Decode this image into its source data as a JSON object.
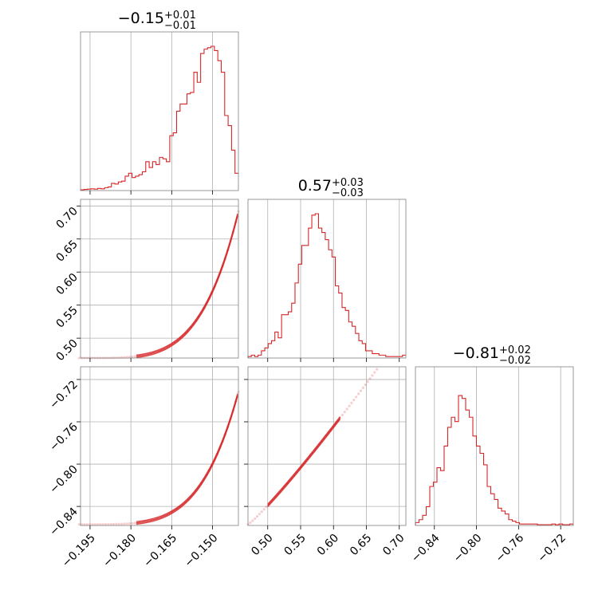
{
  "chart_data": {
    "type": "corner",
    "color": "#d62728",
    "parameters": [
      {
        "title_main": "−0.15",
        "title_plus": "+0.01",
        "title_minus": "−0.01",
        "range": [
          -0.1985,
          -0.1405
        ],
        "ticks": [
          -0.195,
          -0.18,
          -0.165,
          -0.15
        ],
        "tick_labels": [
          "−0.195",
          "−0.180",
          "−0.165",
          "−0.150"
        ],
        "hist": [
          0.005,
          0.008,
          0.01,
          0.012,
          0.01,
          0.015,
          0.012,
          0.02,
          0.025,
          0.05,
          0.045,
          0.06,
          0.065,
          0.1,
          0.12,
          0.09,
          0.1,
          0.11,
          0.13,
          0.2,
          0.16,
          0.2,
          0.18,
          0.23,
          0.22,
          0.2,
          0.38,
          0.4,
          0.55,
          0.6,
          0.6,
          0.67,
          0.68,
          0.82,
          0.75,
          0.95,
          0.98,
          0.99,
          1.0,
          0.97,
          0.9,
          0.82,
          0.52,
          0.45,
          0.28,
          0.12
        ]
      },
      {
        "title_main": "0.57",
        "title_plus": "+0.03",
        "title_minus": "−0.03",
        "range": [
          0.47,
          0.71
        ],
        "ticks": [
          0.5,
          0.55,
          0.6,
          0.65,
          0.7
        ],
        "tick_labels": [
          "0.50",
          "0.55",
          "0.60",
          "0.65",
          "0.70"
        ],
        "hist": [
          0.01,
          0.02,
          0.01,
          0.02,
          0.05,
          0.07,
          0.1,
          0.12,
          0.18,
          0.14,
          0.3,
          0.3,
          0.32,
          0.38,
          0.52,
          0.65,
          0.78,
          0.78,
          0.9,
          0.99,
          1.0,
          0.9,
          0.87,
          0.82,
          0.75,
          0.7,
          0.5,
          0.45,
          0.35,
          0.33,
          0.25,
          0.22,
          0.17,
          0.12,
          0.1,
          0.05,
          0.05,
          0.03,
          0.03,
          0.02,
          0.02,
          0.01,
          0.01,
          0.01,
          0.01,
          0.01,
          0.02
        ]
      },
      {
        "title_main": "−0.81",
        "title_plus": "+0.02",
        "title_minus": "−0.02",
        "range": [
          -0.858,
          -0.708
        ],
        "ticks": [
          -0.84,
          -0.8,
          -0.76,
          -0.72
        ],
        "tick_labels": [
          "−0.84",
          "−0.80",
          "−0.76",
          "−0.72"
        ],
        "hist": [
          0.02,
          0.04,
          0.07,
          0.13,
          0.27,
          0.3,
          0.4,
          0.38,
          0.55,
          0.68,
          0.75,
          0.72,
          0.9,
          0.88,
          0.8,
          0.75,
          0.62,
          0.55,
          0.5,
          0.42,
          0.27,
          0.22,
          0.18,
          0.12,
          0.1,
          0.08,
          0.04,
          0.03,
          0.02,
          0.01,
          0.01,
          0.01,
          0.01,
          0.01,
          0.005,
          0.005,
          0.005,
          0.005,
          0.01,
          0.005,
          0.01,
          0.005,
          0.005,
          0.01
        ]
      }
    ]
  }
}
